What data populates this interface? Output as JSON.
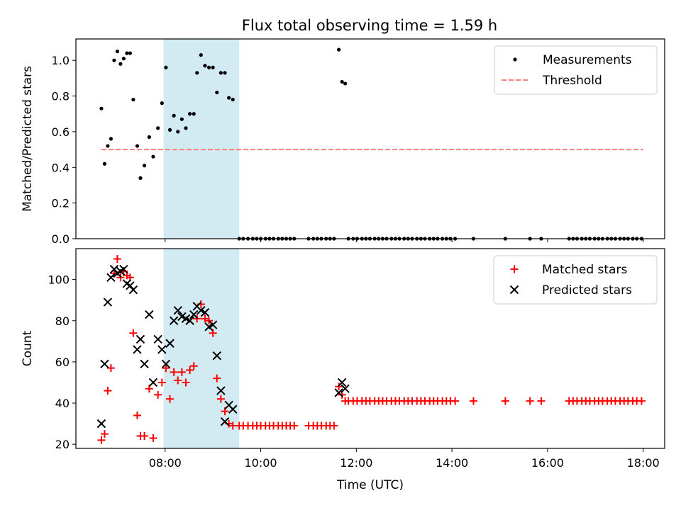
{
  "chart_data": [
    {
      "type": "scatter",
      "title": "Flux total observing time = 1.59 h",
      "xlabel": "",
      "ylabel": "Matched/Predicted stars",
      "xlim": [
        "06:08",
        "18:27"
      ],
      "ylim": [
        0,
        1.12
      ],
      "x_ticks": [
        "08:00",
        "10:00",
        "12:00",
        "14:00",
        "16:00",
        "18:00"
      ],
      "y_ticks": [
        "0.0",
        "0.2",
        "0.4",
        "0.6",
        "0.8",
        "1.0"
      ],
      "legend_position": "upper right",
      "highlight_span": {
        "start": "07:58",
        "end": "09:33",
        "color": "#add8e6"
      },
      "threshold": {
        "name": "Threshold",
        "value": 0.5,
        "x_start": "06:40",
        "x_end": "18:00",
        "color": "#ff7f7f"
      },
      "series": [
        {
          "name": "Measurements",
          "marker": "dot",
          "color": "#000000",
          "points": [
            [
              "06:40",
              0.73
            ],
            [
              "06:44",
              0.42
            ],
            [
              "06:48",
              0.52
            ],
            [
              "06:52",
              0.56
            ],
            [
              "06:56",
              1.0
            ],
            [
              "07:00",
              1.05
            ],
            [
              "07:04",
              0.98
            ],
            [
              "07:08",
              1.01
            ],
            [
              "07:12",
              1.04
            ],
            [
              "07:16",
              1.04
            ],
            [
              "07:20",
              0.78
            ],
            [
              "07:25",
              0.52
            ],
            [
              "07:29",
              0.34
            ],
            [
              "07:34",
              0.41
            ],
            [
              "07:40",
              0.57
            ],
            [
              "07:45",
              0.46
            ],
            [
              "07:51",
              0.62
            ],
            [
              "07:56",
              0.76
            ],
            [
              "08:01",
              0.96
            ],
            [
              "08:06",
              0.61
            ],
            [
              "08:11",
              0.69
            ],
            [
              "08:16",
              0.6
            ],
            [
              "08:21",
              0.67
            ],
            [
              "08:26",
              0.62
            ],
            [
              "08:31",
              0.7
            ],
            [
              "08:36",
              0.7
            ],
            [
              "08:40",
              0.93
            ],
            [
              "08:45",
              1.03
            ],
            [
              "08:50",
              0.97
            ],
            [
              "08:55",
              0.96
            ],
            [
              "09:00",
              0.96
            ],
            [
              "09:05",
              0.82
            ],
            [
              "09:10",
              0.93
            ],
            [
              "09:15",
              0.93
            ],
            [
              "09:20",
              0.79
            ],
            [
              "09:25",
              0.78
            ],
            [
              "09:33",
              0
            ],
            [
              "09:38",
              0
            ],
            [
              "09:44",
              0
            ],
            [
              "09:50",
              0
            ],
            [
              "09:55",
              0
            ],
            [
              "10:00",
              0
            ],
            [
              "10:06",
              0
            ],
            [
              "10:11",
              0
            ],
            [
              "10:16",
              0
            ],
            [
              "10:22",
              0
            ],
            [
              "10:27",
              0
            ],
            [
              "10:32",
              0
            ],
            [
              "10:37",
              0
            ],
            [
              "10:42",
              0
            ],
            [
              "11:00",
              0
            ],
            [
              "11:06",
              0
            ],
            [
              "11:11",
              0
            ],
            [
              "11:16",
              0
            ],
            [
              "11:22",
              0
            ],
            [
              "11:27",
              0
            ],
            [
              "11:32",
              0
            ],
            [
              "11:38",
              1.06
            ],
            [
              "11:42",
              0.88
            ],
            [
              "11:46",
              0.87
            ],
            [
              "11:50",
              0
            ],
            [
              "11:56",
              0
            ],
            [
              "12:01",
              0
            ],
            [
              "12:07",
              0
            ],
            [
              "12:12",
              0
            ],
            [
              "12:17",
              0
            ],
            [
              "12:23",
              0
            ],
            [
              "12:28",
              0
            ],
            [
              "12:33",
              0
            ],
            [
              "12:38",
              0
            ],
            [
              "12:44",
              0
            ],
            [
              "12:49",
              0
            ],
            [
              "12:54",
              0
            ],
            [
              "13:00",
              0
            ],
            [
              "13:05",
              0
            ],
            [
              "13:10",
              0
            ],
            [
              "13:16",
              0
            ],
            [
              "13:21",
              0
            ],
            [
              "13:26",
              0
            ],
            [
              "13:32",
              0
            ],
            [
              "13:37",
              0
            ],
            [
              "13:42",
              0
            ],
            [
              "13:48",
              0
            ],
            [
              "13:53",
              0
            ],
            [
              "13:58",
              0
            ],
            [
              "14:04",
              0
            ],
            [
              "14:27",
              0
            ],
            [
              "15:07",
              0
            ],
            [
              "15:38",
              0
            ],
            [
              "15:52",
              0
            ],
            [
              "16:27",
              0
            ],
            [
              "16:32",
              0
            ],
            [
              "16:37",
              0
            ],
            [
              "16:43",
              0
            ],
            [
              "16:48",
              0
            ],
            [
              "16:53",
              0
            ],
            [
              "16:59",
              0
            ],
            [
              "17:04",
              0
            ],
            [
              "17:09",
              0
            ],
            [
              "17:15",
              0
            ],
            [
              "17:20",
              0
            ],
            [
              "17:25",
              0
            ],
            [
              "17:31",
              0
            ],
            [
              "17:36",
              0
            ],
            [
              "17:41",
              0
            ],
            [
              "17:47",
              0
            ],
            [
              "17:52",
              0
            ],
            [
              "17:58",
              0
            ]
          ]
        }
      ]
    },
    {
      "type": "scatter",
      "title": "",
      "xlabel": "Time (UTC)",
      "ylabel": "Count",
      "xlim": [
        "06:08",
        "18:27"
      ],
      "ylim": [
        18,
        115
      ],
      "x_ticks": [
        "08:00",
        "10:00",
        "12:00",
        "14:00",
        "16:00",
        "18:00"
      ],
      "y_ticks": [
        "20",
        "40",
        "60",
        "80",
        "100"
      ],
      "legend_position": "upper right",
      "highlight_span": {
        "start": "07:58",
        "end": "09:33",
        "color": "#add8e6"
      },
      "series": [
        {
          "name": "Matched stars",
          "marker": "plus",
          "color": "#ff0000",
          "points": [
            [
              "06:40",
              22
            ],
            [
              "06:44",
              25
            ],
            [
              "06:48",
              46
            ],
            [
              "06:52",
              57
            ],
            [
              "06:56",
              103
            ],
            [
              "07:00",
              110
            ],
            [
              "07:04",
              101
            ],
            [
              "07:08",
              104
            ],
            [
              "07:12",
              102
            ],
            [
              "07:16",
              101
            ],
            [
              "07:20",
              74
            ],
            [
              "07:25",
              34
            ],
            [
              "07:29",
              24
            ],
            [
              "07:34",
              24
            ],
            [
              "07:40",
              47
            ],
            [
              "07:45",
              23
            ],
            [
              "07:51",
              44
            ],
            [
              "07:56",
              50
            ],
            [
              "08:01",
              57
            ],
            [
              "08:06",
              42
            ],
            [
              "08:11",
              55
            ],
            [
              "08:16",
              51
            ],
            [
              "08:21",
              55
            ],
            [
              "08:26",
              50
            ],
            [
              "08:31",
              56
            ],
            [
              "08:36",
              58
            ],
            [
              "08:40",
              81
            ],
            [
              "08:45",
              88
            ],
            [
              "08:50",
              81
            ],
            [
              "08:55",
              80
            ],
            [
              "09:00",
              74
            ],
            [
              "09:05",
              52
            ],
            [
              "09:10",
              42
            ],
            [
              "09:15",
              36
            ],
            [
              "09:20",
              30
            ],
            [
              "09:25",
              29
            ],
            [
              "09:33",
              29
            ],
            [
              "09:38",
              29
            ],
            [
              "09:44",
              29
            ],
            [
              "09:50",
              29
            ],
            [
              "09:55",
              29
            ],
            [
              "10:00",
              29
            ],
            [
              "10:06",
              29
            ],
            [
              "10:11",
              29
            ],
            [
              "10:16",
              29
            ],
            [
              "10:22",
              29
            ],
            [
              "10:27",
              29
            ],
            [
              "10:32",
              29
            ],
            [
              "10:37",
              29
            ],
            [
              "10:42",
              29
            ],
            [
              "11:00",
              29
            ],
            [
              "11:06",
              29
            ],
            [
              "11:11",
              29
            ],
            [
              "11:16",
              29
            ],
            [
              "11:22",
              29
            ],
            [
              "11:27",
              29
            ],
            [
              "11:32",
              29
            ],
            [
              "11:38",
              48
            ],
            [
              "11:42",
              44
            ],
            [
              "11:46",
              41
            ],
            [
              "11:50",
              41
            ],
            [
              "11:56",
              41
            ],
            [
              "12:01",
              41
            ],
            [
              "12:07",
              41
            ],
            [
              "12:12",
              41
            ],
            [
              "12:17",
              41
            ],
            [
              "12:23",
              41
            ],
            [
              "12:28",
              41
            ],
            [
              "12:33",
              41
            ],
            [
              "12:38",
              41
            ],
            [
              "12:44",
              41
            ],
            [
              "12:49",
              41
            ],
            [
              "12:54",
              41
            ],
            [
              "13:00",
              41
            ],
            [
              "13:05",
              41
            ],
            [
              "13:10",
              41
            ],
            [
              "13:16",
              41
            ],
            [
              "13:21",
              41
            ],
            [
              "13:26",
              41
            ],
            [
              "13:32",
              41
            ],
            [
              "13:37",
              41
            ],
            [
              "13:42",
              41
            ],
            [
              "13:48",
              41
            ],
            [
              "13:53",
              41
            ],
            [
              "13:58",
              41
            ],
            [
              "14:04",
              41
            ],
            [
              "14:27",
              41
            ],
            [
              "15:07",
              41
            ],
            [
              "15:38",
              41
            ],
            [
              "15:52",
              41
            ],
            [
              "16:27",
              41
            ],
            [
              "16:32",
              41
            ],
            [
              "16:37",
              41
            ],
            [
              "16:43",
              41
            ],
            [
              "16:48",
              41
            ],
            [
              "16:53",
              41
            ],
            [
              "16:59",
              41
            ],
            [
              "17:04",
              41
            ],
            [
              "17:09",
              41
            ],
            [
              "17:15",
              41
            ],
            [
              "17:20",
              41
            ],
            [
              "17:25",
              41
            ],
            [
              "17:31",
              41
            ],
            [
              "17:36",
              41
            ],
            [
              "17:41",
              41
            ],
            [
              "17:47",
              41
            ],
            [
              "17:52",
              41
            ],
            [
              "17:58",
              41
            ]
          ]
        },
        {
          "name": "Predicted stars",
          "marker": "x",
          "color": "#000000",
          "points": [
            [
              "06:40",
              30
            ],
            [
              "06:44",
              59
            ],
            [
              "06:48",
              89
            ],
            [
              "06:52",
              101
            ],
            [
              "06:56",
              105
            ],
            [
              "07:00",
              103
            ],
            [
              "07:04",
              104
            ],
            [
              "07:08",
              105
            ],
            [
              "07:12",
              98
            ],
            [
              "07:16",
              97
            ],
            [
              "07:20",
              95
            ],
            [
              "07:25",
              66
            ],
            [
              "07:29",
              71
            ],
            [
              "07:34",
              59
            ],
            [
              "07:40",
              83
            ],
            [
              "07:45",
              50
            ],
            [
              "07:51",
              71
            ],
            [
              "07:56",
              66
            ],
            [
              "08:01",
              59
            ],
            [
              "08:06",
              69
            ],
            [
              "08:11",
              80
            ],
            [
              "08:16",
              85
            ],
            [
              "08:21",
              82
            ],
            [
              "08:26",
              81
            ],
            [
              "08:31",
              80
            ],
            [
              "08:36",
              83
            ],
            [
              "08:40",
              87
            ],
            [
              "08:45",
              85
            ],
            [
              "08:50",
              84
            ],
            [
              "08:55",
              77
            ],
            [
              "09:00",
              78
            ],
            [
              "09:05",
              63
            ],
            [
              "09:10",
              46
            ],
            [
              "09:15",
              31
            ],
            [
              "09:20",
              39
            ],
            [
              "09:25",
              37
            ],
            [
              "11:38",
              45
            ],
            [
              "11:42",
              50
            ],
            [
              "11:46",
              47
            ]
          ]
        }
      ]
    }
  ]
}
